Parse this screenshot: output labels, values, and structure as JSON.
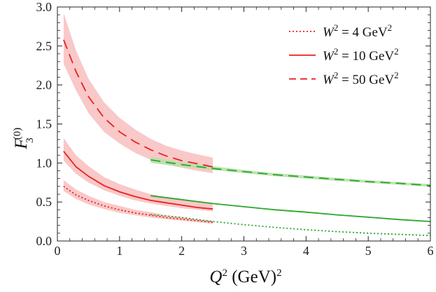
{
  "chart_data": {
    "type": "line",
    "xlabel": "Q2 (GeV)2",
    "ylabel": "F3(0)",
    "xlim": [
      0,
      6
    ],
    "ylim": [
      0,
      3
    ],
    "x_ticks": [
      "0",
      "1",
      "2",
      "3",
      "4",
      "5",
      "6"
    ],
    "y_ticks": [
      "0.0",
      "0.5",
      "1.0",
      "1.5",
      "2.0",
      "2.5",
      "3.0"
    ],
    "grid": false,
    "legend_position": "top-right",
    "colors": {
      "model": "#e8211f",
      "band": "#f7b6b6",
      "pert": "#2aa62a",
      "pert_band": "#b5e0a7"
    },
    "legend": [
      {
        "label": "W2 = 4 GeV2",
        "style": "dotted"
      },
      {
        "label": "W2 = 10 GeV2",
        "style": "solid"
      },
      {
        "label": "W2 = 50 GeV2",
        "style": "dashed"
      }
    ],
    "series": [
      {
        "name": "W2 = 4 GeV2",
        "style": "dotted",
        "low_Q2": {
          "x": [
            0.1,
            0.3,
            0.5,
            0.75,
            1.0,
            1.25,
            1.5,
            1.75,
            2.0,
            2.25,
            2.5
          ],
          "y": [
            0.7,
            0.59,
            0.52,
            0.45,
            0.4,
            0.36,
            0.33,
            0.3,
            0.28,
            0.26,
            0.24
          ],
          "band_lower": [
            0.64,
            0.54,
            0.47,
            0.41,
            0.36,
            0.33,
            0.3,
            0.28,
            0.26,
            0.24,
            0.22
          ],
          "band_upper": [
            0.78,
            0.66,
            0.58,
            0.5,
            0.45,
            0.4,
            0.37,
            0.33,
            0.31,
            0.28,
            0.26
          ]
        },
        "high_Q2": {
          "x": [
            1.5,
            2.0,
            2.5,
            3.0,
            3.5,
            4.0,
            4.5,
            5.0,
            5.5,
            6.0
          ],
          "y": [
            0.34,
            0.3,
            0.25,
            0.21,
            0.175,
            0.145,
            0.12,
            0.1,
            0.085,
            0.07
          ]
        }
      },
      {
        "name": "W2 = 10 GeV2",
        "style": "solid",
        "low_Q2": {
          "x": [
            0.1,
            0.3,
            0.5,
            0.75,
            1.0,
            1.25,
            1.5,
            1.75,
            2.0,
            2.25,
            2.5
          ],
          "y": [
            1.15,
            0.95,
            0.83,
            0.71,
            0.63,
            0.57,
            0.52,
            0.49,
            0.46,
            0.43,
            0.41
          ],
          "band_lower": [
            1.03,
            0.86,
            0.75,
            0.65,
            0.58,
            0.52,
            0.48,
            0.45,
            0.42,
            0.4,
            0.38
          ],
          "band_upper": [
            1.32,
            1.1,
            0.96,
            0.82,
            0.73,
            0.66,
            0.6,
            0.56,
            0.53,
            0.5,
            0.48
          ]
        },
        "high_Q2": {
          "x": [
            1.5,
            2.0,
            2.5,
            3.0,
            3.5,
            4.0,
            4.5,
            5.0,
            5.5,
            6.0
          ],
          "y": [
            0.58,
            0.53,
            0.48,
            0.44,
            0.4,
            0.37,
            0.335,
            0.305,
            0.275,
            0.25
          ]
        }
      },
      {
        "name": "W2 = 50 GeV2",
        "style": "dashed",
        "low_Q2": {
          "x": [
            0.1,
            0.3,
            0.5,
            0.75,
            1.0,
            1.25,
            1.5,
            1.75,
            2.0,
            2.25,
            2.5
          ],
          "y": [
            2.58,
            2.17,
            1.85,
            1.58,
            1.4,
            1.27,
            1.17,
            1.09,
            1.03,
            0.99,
            0.95
          ],
          "band_lower": [
            2.27,
            1.93,
            1.64,
            1.4,
            1.25,
            1.13,
            1.04,
            0.98,
            0.94,
            0.9,
            0.87
          ],
          "band_upper": [
            2.92,
            2.44,
            2.08,
            1.78,
            1.58,
            1.43,
            1.31,
            1.22,
            1.16,
            1.11,
            1.07
          ]
        },
        "high_Q2": {
          "x": [
            1.5,
            2.0,
            2.5,
            3.0,
            3.5,
            4.0,
            4.5,
            5.0,
            5.5,
            6.0
          ],
          "y": [
            1.04,
            0.98,
            0.93,
            0.89,
            0.85,
            0.82,
            0.79,
            0.76,
            0.74,
            0.71
          ],
          "band_lower": [
            1.0,
            0.95,
            0.91,
            0.87,
            0.83,
            0.8,
            0.77,
            0.745,
            0.72,
            0.695
          ],
          "band_upper": [
            1.08,
            1.01,
            0.96,
            0.91,
            0.87,
            0.84,
            0.81,
            0.78,
            0.755,
            0.73
          ]
        }
      }
    ]
  }
}
